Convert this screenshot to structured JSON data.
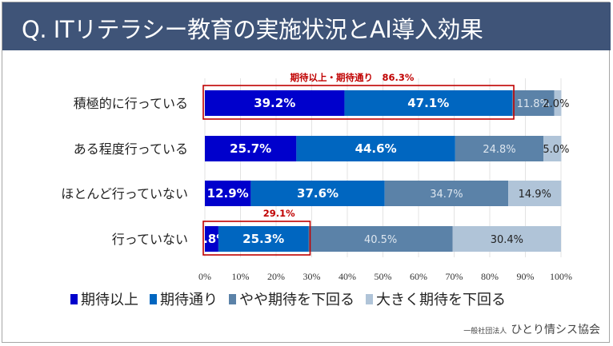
{
  "header": {
    "title": "Q. ITリテラシー教育の実施状況とAI導入効果"
  },
  "chart_data": {
    "type": "bar",
    "stacked": true,
    "orientation": "horizontal",
    "title": "Q. ITリテラシー教育の実施状況とAI導入効果",
    "categories": [
      "積極的に行っている",
      "ある程度行っている",
      "ほとんど行っていない",
      "行っていない"
    ],
    "series": [
      {
        "name": "期待以上",
        "color": "#0000cc",
        "values": [
          39.2,
          25.7,
          12.9,
          3.8
        ]
      },
      {
        "name": "期待通り",
        "color": "#0066c0",
        "values": [
          47.1,
          44.6,
          37.6,
          25.3
        ]
      },
      {
        "name": "やや期待を下回る",
        "color": "#5b82a8",
        "values": [
          11.8,
          24.8,
          34.7,
          40.5
        ]
      },
      {
        "name": "大きく期待を下回る",
        "color": "#b0c4d8",
        "values": [
          2.0,
          5.0,
          14.9,
          30.4
        ]
      }
    ],
    "xlim": [
      0,
      100
    ],
    "xticks": [
      "0%",
      "10%",
      "20%",
      "30%",
      "40%",
      "50%",
      "60%",
      "70%",
      "80%",
      "90%",
      "100%"
    ],
    "grid": true,
    "legend_placement": "bottom",
    "annotations": [
      {
        "text": "期待以上・期待通り　86.3%",
        "row": 0,
        "value": 86.3,
        "color": "#c00000"
      },
      {
        "text": "29.1%",
        "row": 3,
        "value": 29.1,
        "color": "#c00000"
      }
    ]
  },
  "footer": {
    "org_prefix": "一般社団法人",
    "org_name": "ひとり情シス協会"
  }
}
